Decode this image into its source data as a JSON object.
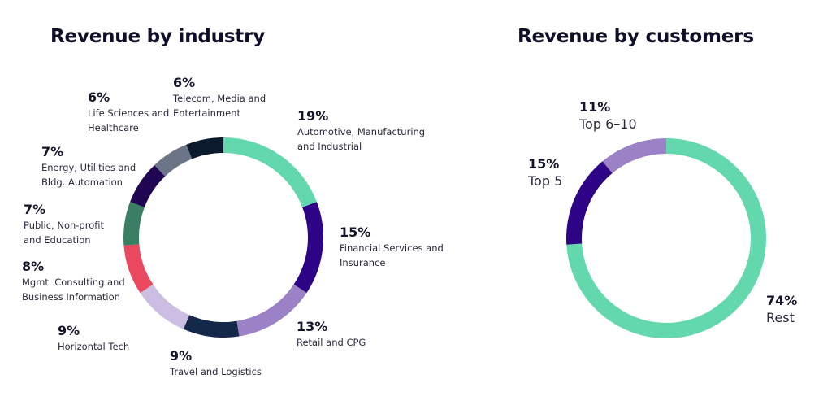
{
  "chart_data": [
    {
      "type": "pie",
      "variant": "donut",
      "title": "Revenue by industry",
      "start": "top",
      "direction": "clockwise",
      "slices": [
        {
          "label": "Automotive, Manufacturing and Industrial",
          "value": 19,
          "pct_label": "19%",
          "color": "#63D8AC"
        },
        {
          "label": "Financial Services and Insurance",
          "value": 15,
          "pct_label": "15%",
          "color": "#2E0487"
        },
        {
          "label": "Retail and CPG",
          "value": 13,
          "pct_label": "13%",
          "color": "#9B82C6"
        },
        {
          "label": "Travel and Logistics",
          "value": 9,
          "pct_label": "9%",
          "color": "#14284A"
        },
        {
          "label": "Horizontal Tech",
          "value": 9,
          "pct_label": "9%",
          "color": "#CBBEE2"
        },
        {
          "label": "Mgmt. Consulting and Business Information",
          "value": 8,
          "pct_label": "8%",
          "color": "#E9485F"
        },
        {
          "label": "Public, Non-profit and Education",
          "value": 7,
          "pct_label": "7%",
          "color": "#3A7F63"
        },
        {
          "label": "Energy, Utilities and Bldg. Automation",
          "value": 7,
          "pct_label": "7%",
          "color": "#1F0552"
        },
        {
          "label": "Life Sciences and Healthcare",
          "value": 6,
          "pct_label": "6%",
          "color": "#6C7587"
        },
        {
          "label": "Telecom, Media and Entertainment",
          "value": 6,
          "pct_label": "6%",
          "color": "#0B1A2D"
        }
      ]
    },
    {
      "type": "pie",
      "variant": "donut",
      "title": "Revenue by customers",
      "start": "top",
      "direction": "clockwise",
      "slices": [
        {
          "label": "Rest",
          "value": 74,
          "pct_label": "74%",
          "color": "#63D8AC"
        },
        {
          "label": "Top 5",
          "value": 15,
          "pct_label": "15%",
          "color": "#2E0487"
        },
        {
          "label": "Top 6–10",
          "value": 11,
          "pct_label": "11%",
          "color": "#9B82C6"
        }
      ]
    }
  ],
  "labels_left": [
    {
      "pct": "19%",
      "lines": [
        "Automotive, Manufacturing",
        "and Industrial"
      ]
    },
    {
      "pct": "15%",
      "lines": [
        "Financial Services and",
        "Insurance"
      ]
    },
    {
      "pct": "13%",
      "lines": [
        "Retail and CPG"
      ]
    },
    {
      "pct": "9%",
      "lines": [
        "Travel and Logistics"
      ]
    },
    {
      "pct": "9%",
      "lines": [
        "Horizontal Tech"
      ]
    },
    {
      "pct": "8%",
      "lines": [
        "Mgmt. Consulting and",
        "Business Information"
      ]
    },
    {
      "pct": "7%",
      "lines": [
        "Public, Non-profit",
        "and Education"
      ]
    },
    {
      "pct": "7%",
      "lines": [
        "Energy, Utilities and",
        "Bldg. Automation"
      ]
    },
    {
      "pct": "6%",
      "lines": [
        "Life Sciences and",
        "Healthcare"
      ]
    },
    {
      "pct": "6%",
      "lines": [
        "Telecom, Media and",
        "Entertainment"
      ]
    }
  ],
  "labels_right": [
    {
      "pct": "74%",
      "lines": [
        "Rest"
      ]
    },
    {
      "pct": "15%",
      "lines": [
        "Top 5"
      ]
    },
    {
      "pct": "11%",
      "lines": [
        "Top 6–10"
      ]
    }
  ]
}
